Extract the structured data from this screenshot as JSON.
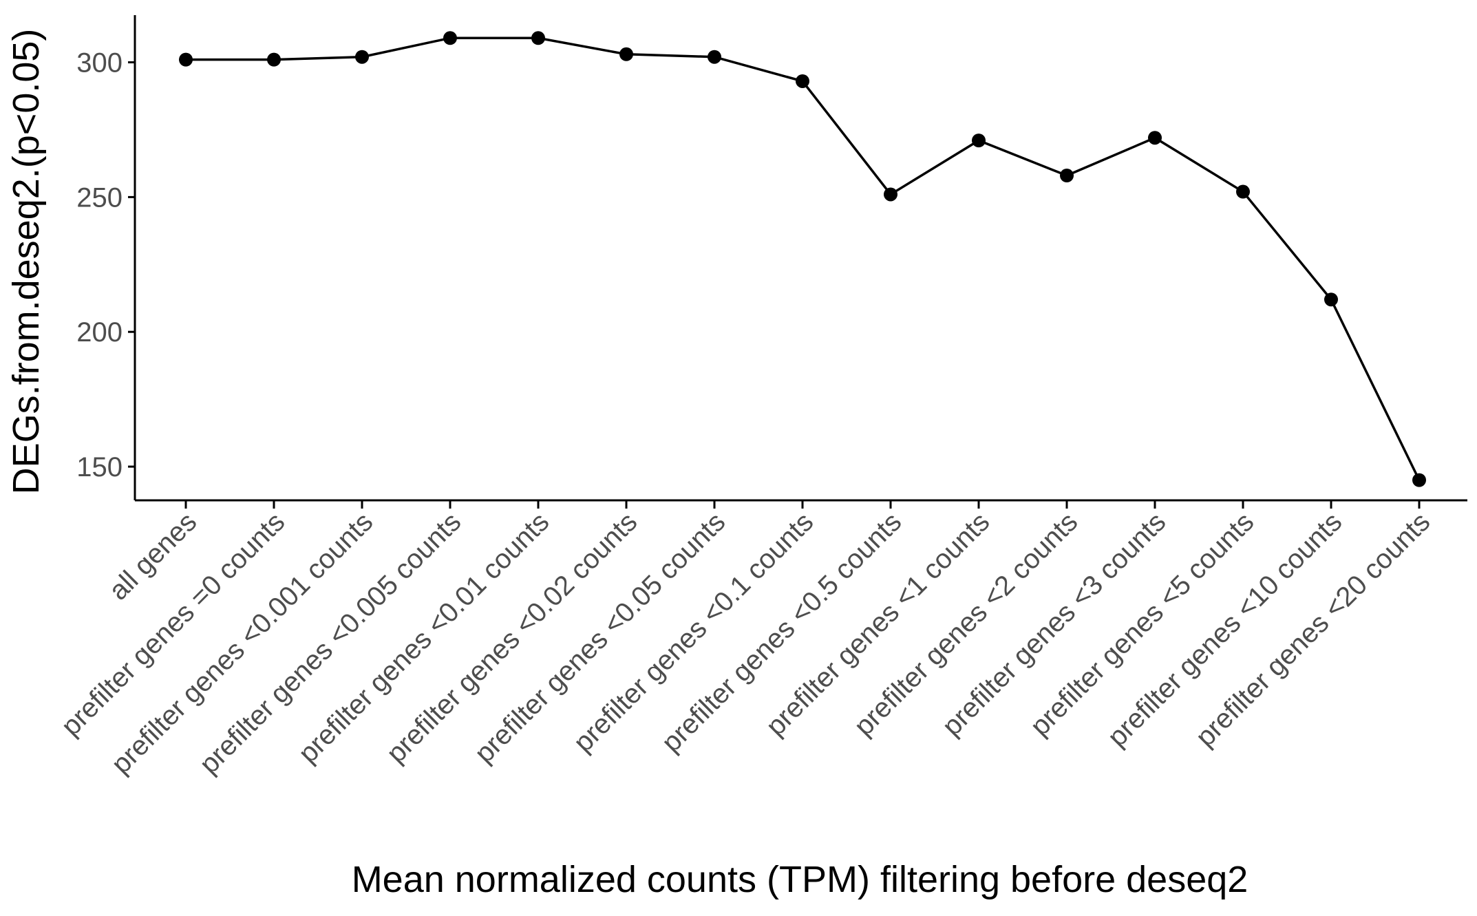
{
  "chart_data": {
    "type": "line",
    "title": "",
    "xlabel": "Mean normalized counts (TPM) filtering before deseq2",
    "ylabel": "DEGs.from.deseq2.(p<0.05)",
    "categories": [
      "all genes",
      "prefilter genes =0 counts",
      "prefilter genes <0.001 counts",
      "prefilter genes <0.005 counts",
      "prefilter genes <0.01 counts",
      "prefilter genes <0.02 counts",
      "prefilter genes <0.05 counts",
      "prefilter genes <0.1 counts",
      "prefilter genes <0.5 counts",
      "prefilter genes <1 counts",
      "prefilter genes <2 counts",
      "prefilter genes <3 counts",
      "prefilter genes <5 counts",
      "prefilter genes <10 counts",
      "prefilter genes <20 counts"
    ],
    "series": [
      {
        "values": [
          301,
          301,
          302,
          309,
          309,
          303,
          302,
          293,
          251,
          271,
          258,
          272,
          252,
          212,
          145
        ]
      }
    ],
    "ylim": [
      137.5,
      317.5
    ],
    "yticks": [
      150,
      200,
      250,
      300
    ],
    "ytick_labels": [
      "150",
      "200",
      "250",
      "300"
    ],
    "grid": false,
    "legend": "none",
    "line_color": "#000000",
    "point_color": "#000000",
    "axis_color": "#000000",
    "tick_label_color": "#4d4d4d"
  }
}
